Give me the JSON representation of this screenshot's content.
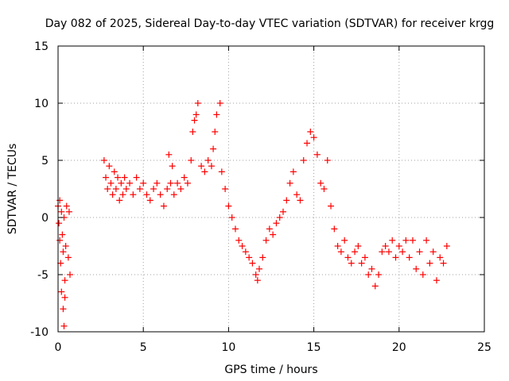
{
  "chart_data": {
    "type": "scatter",
    "title": "Day 082 of 2025, Sidereal Day-to-day VTEC variation (SDTVAR) for receiver krgg",
    "xlabel": "GPS time / hours",
    "ylabel": "SDTVAR / TECUs",
    "xlim": [
      0,
      25
    ],
    "ylim": [
      -10,
      15
    ],
    "xticks": [
      "0",
      "5",
      "10",
      "15",
      "20",
      "25"
    ],
    "yticks": [
      "-10",
      "-5",
      "0",
      "5",
      "10",
      "15"
    ],
    "grid": true,
    "marker": "+",
    "color": "#ff0000",
    "series": [
      {
        "name": "SDTVAR",
        "points": [
          [
            0.0,
            1.0
          ],
          [
            0.05,
            -0.5
          ],
          [
            0.1,
            1.5
          ],
          [
            0.1,
            -2.0
          ],
          [
            0.15,
            -4.0
          ],
          [
            0.2,
            0.5
          ],
          [
            0.2,
            -6.5
          ],
          [
            0.25,
            -1.5
          ],
          [
            0.3,
            -8.0
          ],
          [
            0.3,
            -3.0
          ],
          [
            0.35,
            -9.5
          ],
          [
            0.35,
            0.0
          ],
          [
            0.4,
            -5.5
          ],
          [
            0.4,
            -7.0
          ],
          [
            0.45,
            -2.5
          ],
          [
            0.5,
            1.0
          ],
          [
            0.6,
            -3.5
          ],
          [
            0.65,
            0.5
          ],
          [
            0.7,
            -5.0
          ],
          [
            2.7,
            5.0
          ],
          [
            2.8,
            3.5
          ],
          [
            2.9,
            2.5
          ],
          [
            3.0,
            4.5
          ],
          [
            3.1,
            3.0
          ],
          [
            3.2,
            2.0
          ],
          [
            3.3,
            4.0
          ],
          [
            3.4,
            2.5
          ],
          [
            3.5,
            3.5
          ],
          [
            3.6,
            1.5
          ],
          [
            3.7,
            3.0
          ],
          [
            3.8,
            2.0
          ],
          [
            3.9,
            3.5
          ],
          [
            4.0,
            2.5
          ],
          [
            4.2,
            3.0
          ],
          [
            4.4,
            2.0
          ],
          [
            4.6,
            3.5
          ],
          [
            4.8,
            2.5
          ],
          [
            5.0,
            3.0
          ],
          [
            5.2,
            2.0
          ],
          [
            5.4,
            1.5
          ],
          [
            5.6,
            2.5
          ],
          [
            5.8,
            3.0
          ],
          [
            6.0,
            2.0
          ],
          [
            6.2,
            1.0
          ],
          [
            6.4,
            2.5
          ],
          [
            6.6,
            3.0
          ],
          [
            6.8,
            2.0
          ],
          [
            6.5,
            5.5
          ],
          [
            6.7,
            4.5
          ],
          [
            7.0,
            3.0
          ],
          [
            7.2,
            2.5
          ],
          [
            7.4,
            3.5
          ],
          [
            7.6,
            3.0
          ],
          [
            7.8,
            5.0
          ],
          [
            7.9,
            7.5
          ],
          [
            8.0,
            8.5
          ],
          [
            8.1,
            9.0
          ],
          [
            8.2,
            10.0
          ],
          [
            8.4,
            4.5
          ],
          [
            8.6,
            4.0
          ],
          [
            8.8,
            5.0
          ],
          [
            9.0,
            4.5
          ],
          [
            9.1,
            6.0
          ],
          [
            9.2,
            7.5
          ],
          [
            9.3,
            9.0
          ],
          [
            9.5,
            10.0
          ],
          [
            9.6,
            4.0
          ],
          [
            9.8,
            2.5
          ],
          [
            10.0,
            1.0
          ],
          [
            10.2,
            0.0
          ],
          [
            10.4,
            -1.0
          ],
          [
            10.6,
            -2.0
          ],
          [
            10.8,
            -2.5
          ],
          [
            11.0,
            -3.0
          ],
          [
            11.2,
            -3.5
          ],
          [
            11.4,
            -4.0
          ],
          [
            11.6,
            -5.0
          ],
          [
            11.7,
            -5.5
          ],
          [
            11.8,
            -4.5
          ],
          [
            12.0,
            -3.5
          ],
          [
            12.2,
            -2.0
          ],
          [
            12.4,
            -1.0
          ],
          [
            12.6,
            -1.5
          ],
          [
            12.8,
            -0.5
          ],
          [
            13.0,
            0.0
          ],
          [
            13.2,
            0.5
          ],
          [
            13.4,
            1.5
          ],
          [
            13.6,
            3.0
          ],
          [
            13.8,
            4.0
          ],
          [
            14.0,
            2.0
          ],
          [
            14.2,
            1.5
          ],
          [
            14.4,
            5.0
          ],
          [
            14.6,
            6.5
          ],
          [
            14.8,
            7.5
          ],
          [
            15.0,
            7.0
          ],
          [
            15.2,
            5.5
          ],
          [
            15.4,
            3.0
          ],
          [
            15.6,
            2.5
          ],
          [
            15.8,
            5.0
          ],
          [
            16.0,
            1.0
          ],
          [
            16.2,
            -1.0
          ],
          [
            16.4,
            -2.5
          ],
          [
            16.6,
            -3.0
          ],
          [
            16.8,
            -2.0
          ],
          [
            17.0,
            -3.5
          ],
          [
            17.2,
            -4.0
          ],
          [
            17.4,
            -3.0
          ],
          [
            17.6,
            -2.5
          ],
          [
            17.8,
            -4.0
          ],
          [
            18.0,
            -3.5
          ],
          [
            18.2,
            -5.0
          ],
          [
            18.4,
            -4.5
          ],
          [
            18.6,
            -6.0
          ],
          [
            18.8,
            -5.0
          ],
          [
            19.0,
            -3.0
          ],
          [
            19.2,
            -2.5
          ],
          [
            19.4,
            -3.0
          ],
          [
            19.6,
            -2.0
          ],
          [
            19.8,
            -3.5
          ],
          [
            20.0,
            -2.5
          ],
          [
            20.2,
            -3.0
          ],
          [
            20.4,
            -2.0
          ],
          [
            20.6,
            -3.5
          ],
          [
            20.8,
            -2.0
          ],
          [
            21.0,
            -4.5
          ],
          [
            21.2,
            -3.0
          ],
          [
            21.4,
            -5.0
          ],
          [
            21.6,
            -2.0
          ],
          [
            21.8,
            -4.0
          ],
          [
            22.0,
            -3.0
          ],
          [
            22.2,
            -5.5
          ],
          [
            22.4,
            -3.5
          ],
          [
            22.6,
            -4.0
          ],
          [
            22.8,
            -2.5
          ]
        ]
      }
    ]
  }
}
